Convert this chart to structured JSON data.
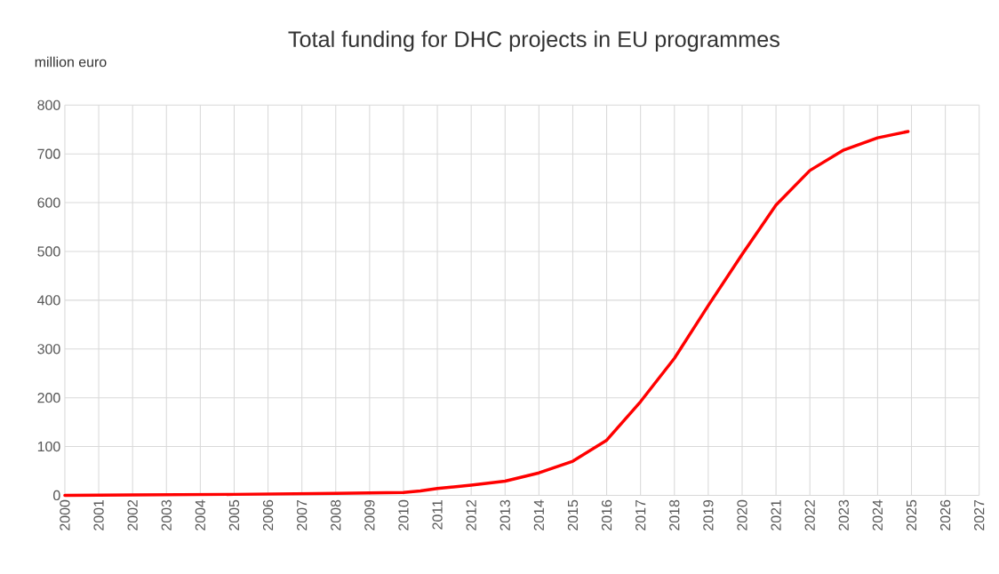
{
  "chart_data": {
    "type": "line",
    "title": "Total funding for DHC projects in EU programmes",
    "ylabel": "million euro",
    "x": [
      2000,
      2002,
      2005,
      2008,
      2009,
      2010,
      2010.5,
      2011,
      2012,
      2013,
      2014,
      2015,
      2016,
      2017,
      2018,
      2019,
      2020,
      2021,
      2022,
      2023,
      2024,
      2024.9
    ],
    "series": [
      {
        "color": "#ff0000",
        "values": [
          0,
          1,
          2,
          4,
          5,
          6,
          9,
          14,
          21,
          29,
          46,
          70,
          113,
          192,
          281,
          389,
          494,
          595,
          666,
          708,
          733,
          746
        ]
      }
    ],
    "xlim": [
      2000,
      2027
    ],
    "ylim": [
      0,
      800
    ],
    "xticks": [
      2000,
      2001,
      2002,
      2003,
      2004,
      2005,
      2006,
      2007,
      2008,
      2009,
      2010,
      2011,
      2012,
      2013,
      2014,
      2015,
      2016,
      2017,
      2018,
      2019,
      2020,
      2021,
      2022,
      2023,
      2024,
      2025,
      2026,
      2027
    ],
    "yticks": [
      0,
      100,
      200,
      300,
      400,
      500,
      600,
      700,
      800
    ],
    "grid": true,
    "marker": "none",
    "line_style": "solid"
  }
}
